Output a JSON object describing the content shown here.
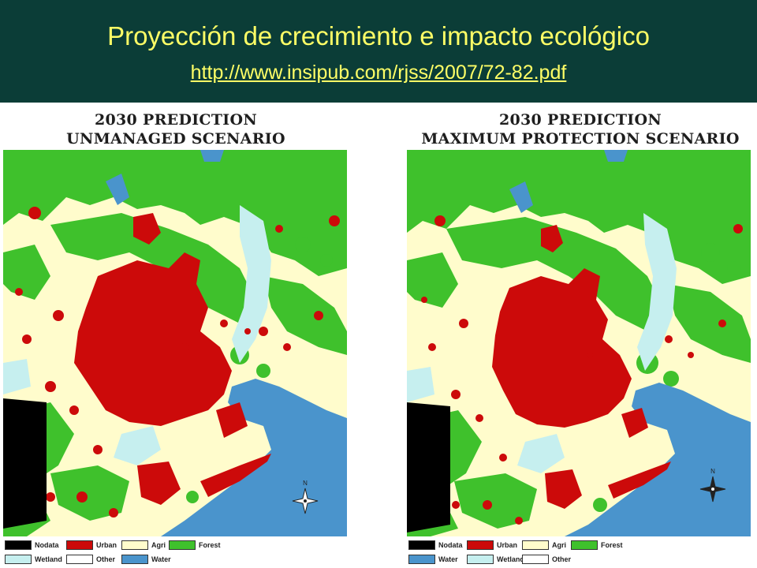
{
  "header": {
    "title": "Proyección de crecimiento e impacto ecológico",
    "link": "http://www.insipub.com/rjss/2007/72-82.pdf",
    "background": "#0b3d37",
    "text_color": "#ffff66"
  },
  "panels": [
    {
      "title_line1": "2030 PREDICTION",
      "title_line2": "UNMANAGED SCENARIO",
      "legend": [
        {
          "label": "Nodata",
          "color": "#000000"
        },
        {
          "label": "Urban",
          "color": "#cc0a0a"
        },
        {
          "label": "Agri",
          "color": "#fffccc"
        },
        {
          "label": "Forest",
          "color": "#3fc12c"
        },
        {
          "label": "Wetland",
          "color": "#c6efef"
        },
        {
          "label": "Other",
          "color": "#ffffff"
        },
        {
          "label": "Water",
          "color": "#4a94cc"
        }
      ]
    },
    {
      "title_line1": "2030 PREDICTION",
      "title_line2": "MAXIMUM PROTECTION SCENARIO",
      "legend": [
        {
          "label": "Nodata",
          "color": "#000000"
        },
        {
          "label": "Urban",
          "color": "#cc0a0a"
        },
        {
          "label": "Agri",
          "color": "#fffccc"
        },
        {
          "label": "Forest",
          "color": "#3fc12c"
        },
        {
          "label": "Water",
          "color": "#4a94cc"
        },
        {
          "label": "Wetland",
          "color": "#c6efef"
        },
        {
          "label": "Other",
          "color": "#ffffff"
        }
      ]
    }
  ],
  "map_colors": {
    "agri": "#fffccc",
    "forest": "#3fc12c",
    "urban": "#cc0a0a",
    "water": "#4a94cc",
    "wetland": "#c6efef",
    "nodata": "#000000"
  },
  "compass_letter": "N"
}
